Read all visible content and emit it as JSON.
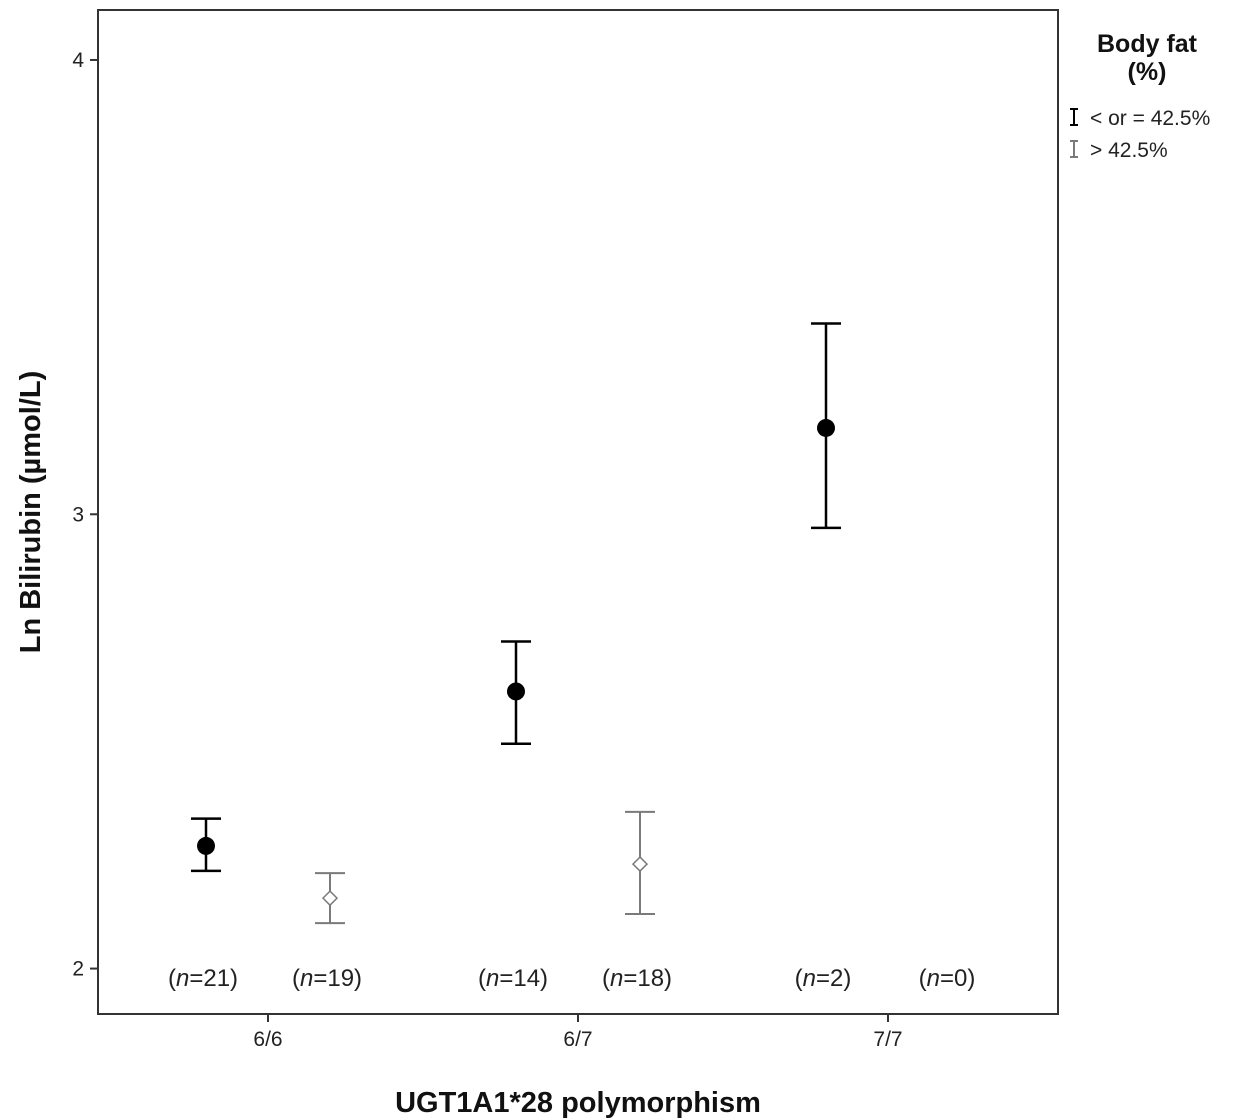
{
  "chart_data": {
    "type": "scatter",
    "xlabel": "UGT1A1*28 polymorphism",
    "ylabel": "Ln Bilirubin (µmol/L)",
    "categories": [
      "6/6",
      "6/7",
      "7/7"
    ],
    "ylim": [
      1.9,
      4.11
    ],
    "yticks": [
      2,
      3,
      4
    ],
    "grid": false,
    "legend": {
      "title_line1": "Body fat",
      "title_line2": "(%)",
      "placement": "top-right outside plot"
    },
    "series": [
      {
        "name": "< or = 42.5%",
        "color": "#000000",
        "marker": "filled-circle",
        "points": [
          {
            "category": "6/6",
            "mean": 2.27,
            "lower": 2.215,
            "upper": 2.33,
            "n_prefix": "(",
            "n_italic": "n",
            "n_suffix": "=21)"
          },
          {
            "category": "6/7",
            "mean": 2.61,
            "lower": 2.495,
            "upper": 2.72,
            "n_prefix": "(",
            "n_italic": "n",
            "n_suffix": "=14)"
          },
          {
            "category": "7/7",
            "mean": 3.19,
            "lower": 2.97,
            "upper": 3.42,
            "n_prefix": "(",
            "n_italic": "n",
            "n_suffix": "=2)"
          }
        ]
      },
      {
        "name": "> 42.5%",
        "color": "#7a7a7a",
        "marker": "open-diamond",
        "points": [
          {
            "category": "6/6",
            "mean": 2.155,
            "lower": 2.1,
            "upper": 2.21,
            "n_prefix": "(",
            "n_italic": "n",
            "n_suffix": "=19)"
          },
          {
            "category": "6/7",
            "mean": 2.23,
            "lower": 2.12,
            "upper": 2.345,
            "n_prefix": "(",
            "n_italic": "n",
            "n_suffix": "=18)"
          },
          {
            "category": "7/7",
            "mean": null,
            "lower": null,
            "upper": null,
            "n_prefix": "(",
            "n_italic": "n",
            "n_suffix": "=0)"
          }
        ]
      }
    ]
  }
}
